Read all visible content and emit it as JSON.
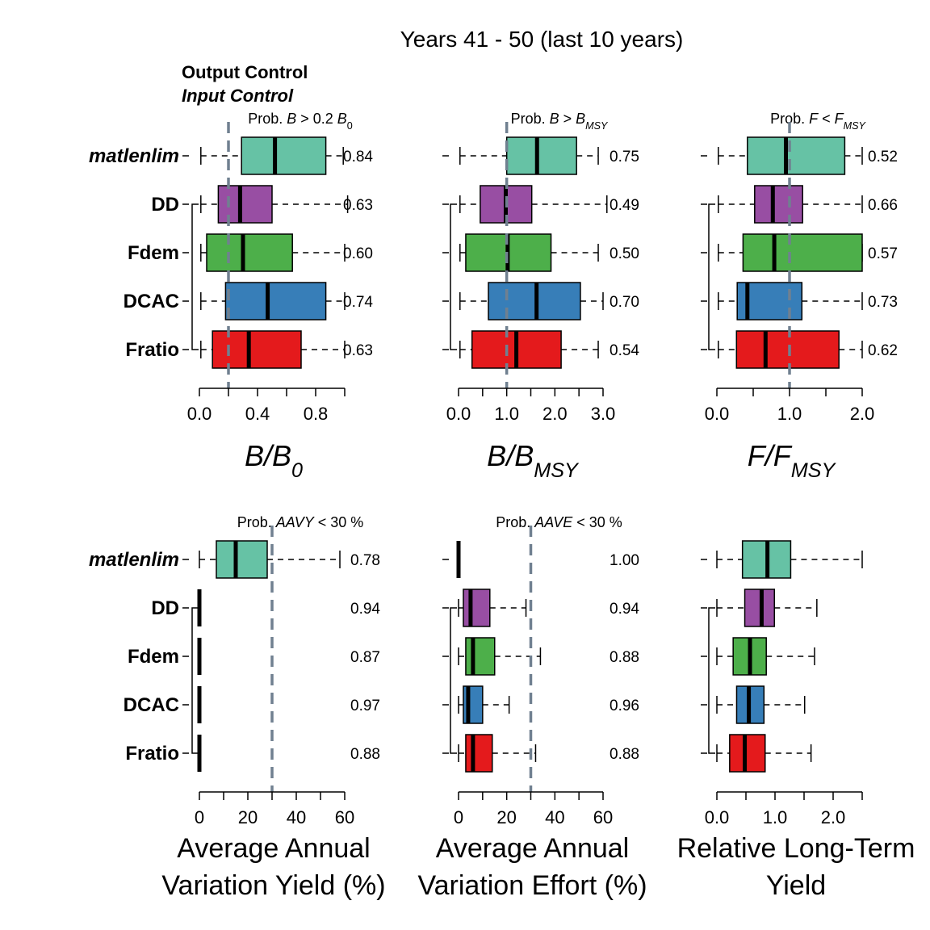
{
  "title": "Years 41 - 50 (last 10 years)",
  "legend": {
    "output_label": "Output Control",
    "input_label": "Input Control"
  },
  "management_procedures": [
    {
      "name": "matlenlim",
      "control": "output",
      "color": "#66C2A5"
    },
    {
      "name": "DD",
      "control": "input",
      "color": "#984EA3"
    },
    {
      "name": "Fdem",
      "control": "input",
      "color": "#4DAF4A"
    },
    {
      "name": "DCAC",
      "control": "input",
      "color": "#377EB8"
    },
    {
      "name": "Fratio",
      "control": "input",
      "color": "#E41A1C"
    }
  ],
  "reference_line_color": "#708090",
  "chart_data": [
    {
      "type": "boxplot",
      "prob_title_parts": [
        {
          "t": "Prob. "
        },
        {
          "t": "B",
          "i": true
        },
        {
          "t": " > 0.2 "
        },
        {
          "t": "B",
          "i": true
        },
        {
          "t": "0",
          "sub": true
        }
      ],
      "xlabel_parts": [
        {
          "t": "B"
        },
        {
          "t": "/"
        },
        {
          "t": "B"
        },
        {
          "t": "0",
          "sub": true
        }
      ],
      "xlim": [
        0,
        1.0
      ],
      "ticks": [
        0,
        0.2,
        0.4,
        0.6,
        0.8,
        1.0
      ],
      "tick_labels": [
        "0.0",
        "0.4",
        "0.8"
      ],
      "tick_label_values": [
        0,
        0.4,
        0.8
      ],
      "ref_line": 0.2,
      "series": [
        {
          "name": "matlenlim",
          "whisker_low": 0.01,
          "q1": 0.29,
          "median": 0.52,
          "q3": 0.87,
          "whisker_high": 0.99,
          "prob": "0.84"
        },
        {
          "name": "DD",
          "whisker_low": 0.01,
          "q1": 0.13,
          "median": 0.28,
          "q3": 0.5,
          "whisker_high": 1.02,
          "prob": "0.63"
        },
        {
          "name": "Fdem",
          "whisker_low": 0.01,
          "q1": 0.05,
          "median": 0.3,
          "q3": 0.64,
          "whisker_high": 1.0,
          "prob": "0.60"
        },
        {
          "name": "DCAC",
          "whisker_low": 0.01,
          "q1": 0.18,
          "median": 0.47,
          "q3": 0.87,
          "whisker_high": 1.0,
          "prob": "0.74"
        },
        {
          "name": "Fratio",
          "whisker_low": 0.01,
          "q1": 0.09,
          "median": 0.34,
          "q3": 0.7,
          "whisker_high": 1.0,
          "prob": "0.63"
        }
      ]
    },
    {
      "type": "boxplot",
      "prob_title_parts": [
        {
          "t": "Prob. "
        },
        {
          "t": "B",
          "i": true
        },
        {
          "t": " > "
        },
        {
          "t": "B",
          "i": true
        },
        {
          "t": "MSY",
          "sub": true,
          "i": true
        }
      ],
      "xlabel_parts": [
        {
          "t": "B"
        },
        {
          "t": "/"
        },
        {
          "t": "B"
        },
        {
          "t": "MSY",
          "sub": true
        }
      ],
      "xlim": [
        0,
        3.0
      ],
      "ticks": [
        0,
        0.5,
        1.0,
        1.5,
        2.0,
        2.5,
        3.0
      ],
      "tick_labels": [
        "0.0",
        "1.0",
        "2.0",
        "3.0"
      ],
      "tick_label_values": [
        0,
        1.0,
        2.0,
        3.0
      ],
      "ref_line": 1.0,
      "series": [
        {
          "name": "matlenlim",
          "whisker_low": 0.03,
          "q1": 1.0,
          "median": 1.63,
          "q3": 2.45,
          "whisker_high": 2.9,
          "prob": "0.75"
        },
        {
          "name": "DD",
          "whisker_low": 0.03,
          "q1": 0.45,
          "median": 0.98,
          "q3": 1.52,
          "whisker_high": 3.08,
          "prob": "0.49"
        },
        {
          "name": "Fdem",
          "whisker_low": 0.03,
          "q1": 0.15,
          "median": 1.02,
          "q3": 1.92,
          "whisker_high": 2.9,
          "prob": "0.50"
        },
        {
          "name": "DCAC",
          "whisker_low": 0.03,
          "q1": 0.62,
          "median": 1.62,
          "q3": 2.53,
          "whisker_high": 3.0,
          "prob": "0.70"
        },
        {
          "name": "Fratio",
          "whisker_low": 0.03,
          "q1": 0.28,
          "median": 1.2,
          "q3": 2.13,
          "whisker_high": 2.9,
          "prob": "0.54"
        }
      ]
    },
    {
      "type": "boxplot",
      "prob_title_parts": [
        {
          "t": "Prob. "
        },
        {
          "t": "F",
          "i": true
        },
        {
          "t": " < "
        },
        {
          "t": "F",
          "i": true
        },
        {
          "t": "MSY",
          "sub": true,
          "i": true
        }
      ],
      "xlabel_parts": [
        {
          "t": "F"
        },
        {
          "t": "/"
        },
        {
          "t": "F"
        },
        {
          "t": "MSY",
          "sub": true
        }
      ],
      "xlim": [
        0,
        2.0
      ],
      "ticks": [
        0,
        0.5,
        1.0,
        1.5,
        2.0
      ],
      "tick_labels": [
        "0.0",
        "1.0",
        "2.0"
      ],
      "tick_label_values": [
        0,
        1.0,
        2.0
      ],
      "ref_line": 1.0,
      "series": [
        {
          "name": "matlenlim",
          "whisker_low": 0.02,
          "q1": 0.42,
          "median": 0.95,
          "q3": 1.76,
          "whisker_high": 2.0,
          "prob": "0.52"
        },
        {
          "name": "DD",
          "whisker_low": 0.02,
          "q1": 0.52,
          "median": 0.77,
          "q3": 1.18,
          "whisker_high": 2.0,
          "prob": "0.66"
        },
        {
          "name": "Fdem",
          "whisker_low": 0.02,
          "q1": 0.36,
          "median": 0.79,
          "q3": 2.0,
          "whisker_high": 2.0,
          "prob": "0.57"
        },
        {
          "name": "DCAC",
          "whisker_low": 0.02,
          "q1": 0.28,
          "median": 0.42,
          "q3": 1.17,
          "whisker_high": 2.0,
          "prob": "0.73"
        },
        {
          "name": "Fratio",
          "whisker_low": 0.02,
          "q1": 0.27,
          "median": 0.67,
          "q3": 1.68,
          "whisker_high": 2.0,
          "prob": "0.62"
        }
      ]
    },
    {
      "type": "boxplot",
      "prob_title_parts": [
        {
          "t": "Prob. "
        },
        {
          "t": "AAVY",
          "i": true
        },
        {
          "t": " < 30 %"
        }
      ],
      "xlabel_lines": [
        "Average Annual",
        "Variation Yield (%)"
      ],
      "xlim": [
        0,
        60
      ],
      "ticks": [
        0,
        10,
        20,
        30,
        40,
        50,
        60
      ],
      "tick_labels": [
        "0",
        "20",
        "40",
        "60"
      ],
      "tick_label_values": [
        0,
        20,
        40,
        60
      ],
      "ref_line": 30,
      "series": [
        {
          "name": "matlenlim",
          "whisker_low": 0,
          "q1": 7,
          "median": 15,
          "q3": 28,
          "whisker_high": 58,
          "prob": "0.78"
        },
        {
          "name": "DD",
          "whisker_low": 0,
          "q1": 0,
          "median": 0,
          "q3": 0,
          "whisker_high": 0,
          "prob": "0.94"
        },
        {
          "name": "Fdem",
          "whisker_low": 0,
          "q1": 0,
          "median": 0,
          "q3": 0,
          "whisker_high": 0,
          "prob": "0.87"
        },
        {
          "name": "DCAC",
          "whisker_low": 0,
          "q1": 0,
          "median": 0,
          "q3": 0,
          "whisker_high": 0,
          "prob": "0.97"
        },
        {
          "name": "Fratio",
          "whisker_low": 0,
          "q1": 0,
          "median": 0,
          "q3": 0,
          "whisker_high": 0,
          "prob": "0.88"
        }
      ]
    },
    {
      "type": "boxplot",
      "prob_title_parts": [
        {
          "t": "Prob. "
        },
        {
          "t": "AAVE",
          "i": true
        },
        {
          "t": " < 30 %"
        }
      ],
      "xlabel_lines": [
        "Average Annual",
        "Variation Effort (%)"
      ],
      "xlim": [
        0,
        60
      ],
      "ticks": [
        0,
        10,
        20,
        30,
        40,
        50,
        60
      ],
      "tick_labels": [
        "0",
        "20",
        "40",
        "60"
      ],
      "tick_label_values": [
        0,
        20,
        40,
        60
      ],
      "ref_line": 30,
      "series": [
        {
          "name": "matlenlim",
          "whisker_low": 0,
          "q1": 0,
          "median": 0,
          "q3": 0,
          "whisker_high": 0,
          "prob": "1.00"
        },
        {
          "name": "DD",
          "whisker_low": 0,
          "q1": 2,
          "median": 5,
          "q3": 13,
          "whisker_high": 28,
          "prob": "0.94"
        },
        {
          "name": "Fdem",
          "whisker_low": 0,
          "q1": 3,
          "median": 6,
          "q3": 15,
          "whisker_high": 34,
          "prob": "0.88"
        },
        {
          "name": "DCAC",
          "whisker_low": 0,
          "q1": 2,
          "median": 4,
          "q3": 10,
          "whisker_high": 21,
          "prob": "0.96"
        },
        {
          "name": "Fratio",
          "whisker_low": 0,
          "q1": 3,
          "median": 6,
          "q3": 14,
          "whisker_high": 32,
          "prob": "0.88"
        }
      ]
    },
    {
      "type": "boxplot",
      "prob_title_parts": [],
      "xlabel_lines": [
        "Relative Long-Term",
        "Yield"
      ],
      "xlim": [
        0,
        2.5
      ],
      "ticks": [
        0,
        0.5,
        1.0,
        1.5,
        2.0,
        2.5
      ],
      "tick_labels": [
        "0.0",
        "1.0",
        "2.0"
      ],
      "tick_label_values": [
        0,
        1.0,
        2.0
      ],
      "ref_line": null,
      "series": [
        {
          "name": "matlenlim",
          "whisker_low": 0,
          "q1": 0.44,
          "median": 0.87,
          "q3": 1.27,
          "whisker_high": 2.5,
          "prob": ""
        },
        {
          "name": "DD",
          "whisker_low": 0,
          "q1": 0.48,
          "median": 0.77,
          "q3": 0.99,
          "whisker_high": 1.72,
          "prob": ""
        },
        {
          "name": "Fdem",
          "whisker_low": 0,
          "q1": 0.28,
          "median": 0.57,
          "q3": 0.85,
          "whisker_high": 1.68,
          "prob": ""
        },
        {
          "name": "DCAC",
          "whisker_low": 0,
          "q1": 0.34,
          "median": 0.55,
          "q3": 0.81,
          "whisker_high": 1.51,
          "prob": ""
        },
        {
          "name": "Fratio",
          "whisker_low": 0,
          "q1": 0.22,
          "median": 0.48,
          "q3": 0.83,
          "whisker_high": 1.62,
          "prob": ""
        }
      ]
    }
  ]
}
